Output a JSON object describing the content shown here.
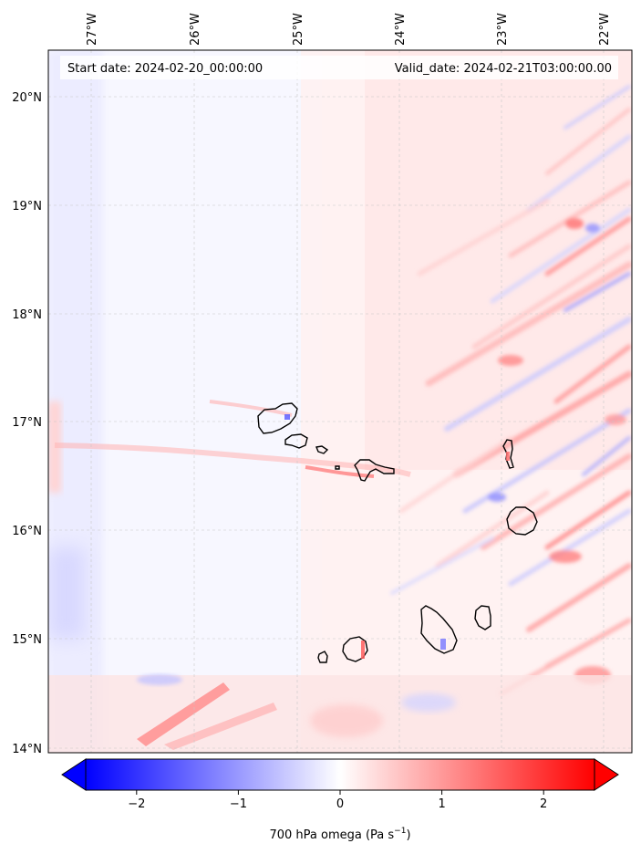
{
  "map": {
    "start_date": "Start date: 2024-02-20_00:00:00",
    "valid_date": "Valid_date: 2024-02-21T03:00:00.00",
    "lon_labels": [
      "27°W",
      "26°W",
      "25°W",
      "24°W",
      "23°W",
      "22°W"
    ],
    "lat_labels": [
      "20°N",
      "19°N",
      "18°N",
      "17°N",
      "16°N",
      "15°N",
      "14°N"
    ],
    "colorbar": {
      "ticks": [
        "−2",
        "−1",
        "0",
        "1",
        "2"
      ],
      "tick_values": [
        -2,
        -1,
        0,
        1,
        2
      ],
      "range": [
        -2.5,
        2.5
      ],
      "label_prefix": "700 hPa omega (Pa s",
      "label_exp": "−1",
      "label_suffix": ")",
      "colormap": "bwr",
      "extend": "both"
    },
    "colors": {
      "negative": "#0000ff",
      "zero": "#ffffff",
      "positive": "#ff0000",
      "coastline": "#000000",
      "gridlines": "#c8c8c8"
    },
    "islands": [
      "Santo Antão",
      "São Vicente",
      "Santa Luzia",
      "São Nicolau",
      "Sal",
      "Boa Vista",
      "Brava",
      "Fogo",
      "Santiago",
      "Maio"
    ]
  }
}
